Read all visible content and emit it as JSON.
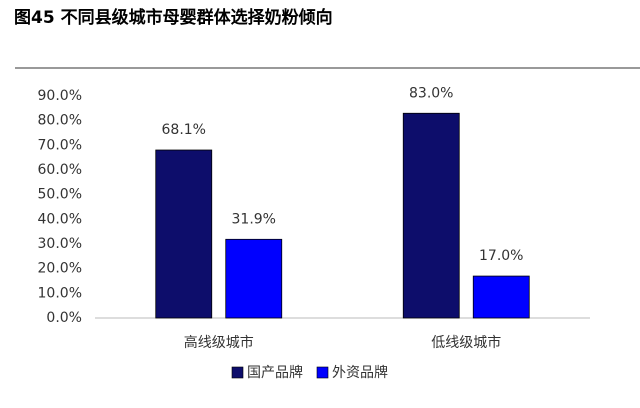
{
  "chart_data": {
    "type": "bar",
    "title": "图45 不同县级城市母婴群体选择奶粉倾向",
    "categories": [
      "高线级城市",
      "低线级城市"
    ],
    "series": [
      {
        "name": "国产品牌",
        "color": "#0d0d6b",
        "values": [
          68.1,
          83.0
        ],
        "value_labels": [
          "68.1%",
          "83.0%"
        ]
      },
      {
        "name": "外资品牌",
        "color": "#0000ff",
        "values": [
          31.9,
          17.0
        ],
        "value_labels": [
          "31.9%",
          "17.0%"
        ]
      }
    ],
    "ylim": [
      0,
      90
    ],
    "yticks": [
      {
        "value": 0,
        "label": "0.0%"
      },
      {
        "value": 10,
        "label": "10.0%"
      },
      {
        "value": 20,
        "label": "20.0%"
      },
      {
        "value": 30,
        "label": "30.0%"
      },
      {
        "value": 40,
        "label": "40.0%"
      },
      {
        "value": 50,
        "label": "50.0%"
      },
      {
        "value": 60,
        "label": "60.0%"
      },
      {
        "value": 70,
        "label": "70.0%"
      },
      {
        "value": 80,
        "label": "80.0%"
      },
      {
        "value": 90,
        "label": "90.0%"
      }
    ],
    "grid": false,
    "legend": "bottom"
  }
}
